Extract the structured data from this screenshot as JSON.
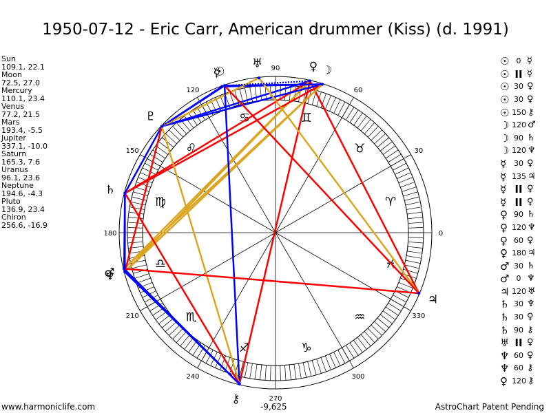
{
  "title": "1950-07-12 - Eric Carr, American drummer (Kiss) (d. 1991)",
  "positions": [
    {
      "name": "Sun",
      "value": "109.1, 22.1"
    },
    {
      "name": "Moon",
      "value": "72.5, 27.0"
    },
    {
      "name": "Mercury",
      "value": "110.1, 23.4"
    },
    {
      "name": "Venus",
      "value": "77.2, 21.5"
    },
    {
      "name": "Mars",
      "value": "193.4, -5.5"
    },
    {
      "name": "Jupiter",
      "value": "337.1, -10.0"
    },
    {
      "name": "Saturn",
      "value": "165.3, 7.6"
    },
    {
      "name": "Uranus",
      "value": "96.1, 23.6"
    },
    {
      "name": "Neptune",
      "value": "194.6, -4.3"
    },
    {
      "name": "Pluto",
      "value": "136.9, 23.4"
    },
    {
      "name": "Chiron",
      "value": "256.6, -16.9"
    }
  ],
  "aspects": [
    {
      "p1": "☉",
      "angle": "0",
      "p2": "☿"
    },
    {
      "p1": "☉",
      "angle": "II",
      "p2": "☿"
    },
    {
      "p1": "☉",
      "angle": "30",
      "p2": "♀"
    },
    {
      "p1": "☉",
      "angle": "30",
      "p2": "♀"
    },
    {
      "p1": "☉",
      "angle": "150",
      "p2": "⚷"
    },
    {
      "p1": "☽",
      "angle": "120",
      "p2": "♂"
    },
    {
      "p1": "☽",
      "angle": "90",
      "p2": "♄"
    },
    {
      "p1": "☽",
      "angle": "120",
      "p2": "♆"
    },
    {
      "p1": "☿",
      "angle": "30",
      "p2": "♀"
    },
    {
      "p1": "☿",
      "angle": "135",
      "p2": "♃"
    },
    {
      "p1": "☿",
      "angle": "II",
      "p2": "♀"
    },
    {
      "p1": "☿",
      "angle": "II",
      "p2": "♀"
    },
    {
      "p1": "♀",
      "angle": "90",
      "p2": "♄"
    },
    {
      "p1": "♀",
      "angle": "120",
      "p2": "♆"
    },
    {
      "p1": "♀",
      "angle": "60",
      "p2": "♀"
    },
    {
      "p1": "♀",
      "angle": "180",
      "p2": "♃"
    },
    {
      "p1": "♂",
      "angle": "30",
      "p2": "♄"
    },
    {
      "p1": "♂",
      "angle": "0",
      "p2": "♆"
    },
    {
      "p1": "♃",
      "angle": "120",
      "p2": "♅"
    },
    {
      "p1": "♄",
      "angle": "30",
      "p2": "♆"
    },
    {
      "p1": "♄",
      "angle": "30",
      "p2": "♀"
    },
    {
      "p1": "♄",
      "angle": "90",
      "p2": "⚷"
    },
    {
      "p1": "♅",
      "angle": "II",
      "p2": "♀"
    },
    {
      "p1": "♆",
      "angle": "60",
      "p2": "♀"
    },
    {
      "p1": "♆",
      "angle": "60",
      "p2": "⚷"
    },
    {
      "p1": "♀",
      "angle": "120",
      "p2": "⚷"
    }
  ],
  "wheel": {
    "degree_labels": [
      "0",
      "30",
      "60",
      "90",
      "120",
      "150",
      "180",
      "210",
      "240",
      "270",
      "300",
      "330"
    ],
    "zodiac_signs": [
      {
        "glyph": "♈",
        "angle": 15
      },
      {
        "glyph": "♉",
        "angle": 45
      },
      {
        "glyph": "♊",
        "angle": 75
      },
      {
        "glyph": "♋",
        "angle": 105
      },
      {
        "glyph": "♌",
        "angle": 135
      },
      {
        "glyph": "♍",
        "angle": 165
      },
      {
        "glyph": "♎",
        "angle": 195
      },
      {
        "glyph": "♏",
        "angle": 225
      },
      {
        "glyph": "♐",
        "angle": 255
      },
      {
        "glyph": "♑",
        "angle": 285
      },
      {
        "glyph": "♒",
        "angle": 315
      },
      {
        "glyph": "♓",
        "angle": 345
      }
    ],
    "planets": [
      {
        "key": "sun",
        "glyph": "☉",
        "lon": 109.1
      },
      {
        "key": "moon",
        "glyph": "☽",
        "lon": 72.5
      },
      {
        "key": "mercury",
        "glyph": "☿",
        "lon": 110.1
      },
      {
        "key": "venus",
        "glyph": "♀",
        "lon": 77.2
      },
      {
        "key": "mars",
        "glyph": "♂",
        "lon": 193.4
      },
      {
        "key": "jupiter",
        "glyph": "♃",
        "lon": 337.1
      },
      {
        "key": "saturn",
        "glyph": "♄",
        "lon": 165.3
      },
      {
        "key": "uranus",
        "glyph": "♅",
        "lon": 96.1
      },
      {
        "key": "neptune",
        "glyph": "♆",
        "lon": 194.6
      },
      {
        "key": "pluto",
        "glyph": "♇",
        "lon": 136.9
      },
      {
        "key": "chiron",
        "glyph": "⚷",
        "lon": 256.6
      }
    ],
    "aspect_lines": [
      {
        "a": "venus",
        "b": "pluto",
        "color": "#0000ff"
      },
      {
        "a": "venus",
        "b": "saturn",
        "color": "#ff0000"
      },
      {
        "a": "venus",
        "b": "neptune",
        "color": "#daa520"
      },
      {
        "a": "venus",
        "b": "mars",
        "color": "#daa520"
      },
      {
        "a": "venus",
        "b": "jupiter",
        "color": "#ff0000"
      },
      {
        "a": "venus",
        "b": "chiron",
        "color": "#ff0000"
      },
      {
        "a": "moon",
        "b": "pluto",
        "color": "#0000ff"
      },
      {
        "a": "moon",
        "b": "saturn",
        "color": "#ff0000"
      },
      {
        "a": "moon",
        "b": "neptune",
        "color": "#daa520"
      },
      {
        "a": "moon",
        "b": "mars",
        "color": "#daa520"
      },
      {
        "a": "moon",
        "b": "mercury",
        "color": "#0000ff"
      },
      {
        "a": "moon",
        "b": "sun",
        "color": "#0000ff"
      },
      {
        "a": "uranus",
        "b": "pluto",
        "color": "#daa520"
      },
      {
        "a": "uranus",
        "b": "jupiter",
        "color": "#daa520"
      },
      {
        "a": "sun",
        "b": "pluto",
        "color": "#0000ff"
      },
      {
        "a": "sun",
        "b": "jupiter",
        "color": "#ff0000"
      },
      {
        "a": "sun",
        "b": "chiron",
        "color": "#0000ff"
      },
      {
        "a": "mercury",
        "b": "pluto",
        "color": "#0000ff"
      },
      {
        "a": "pluto",
        "b": "saturn",
        "color": "#0000ff"
      },
      {
        "a": "pluto",
        "b": "neptune",
        "color": "#ff0000"
      },
      {
        "a": "pluto",
        "b": "chiron",
        "color": "#daa520"
      },
      {
        "a": "saturn",
        "b": "neptune",
        "color": "#0000ff"
      },
      {
        "a": "saturn",
        "b": "mars",
        "color": "#0000ff"
      },
      {
        "a": "saturn",
        "b": "chiron",
        "color": "#ff0000"
      },
      {
        "a": "neptune",
        "b": "chiron",
        "color": "#0000ff"
      },
      {
        "a": "mars",
        "b": "chiron",
        "color": "#0000ff"
      },
      {
        "a": "mars",
        "b": "jupiter",
        "color": "#ff0000"
      }
    ],
    "dotted_lines": [
      {
        "a": "sun",
        "b": "venus",
        "color": "#0000ff"
      },
      {
        "a": "mercury",
        "b": "venus",
        "color": "#0000ff"
      },
      {
        "a": "pluto",
        "b": "uranus",
        "color": "#daa520"
      }
    ]
  },
  "footer": {
    "left": "www.harmoniclife.com",
    "center": "-9,625",
    "right": "AstroChart Patent Pending"
  }
}
